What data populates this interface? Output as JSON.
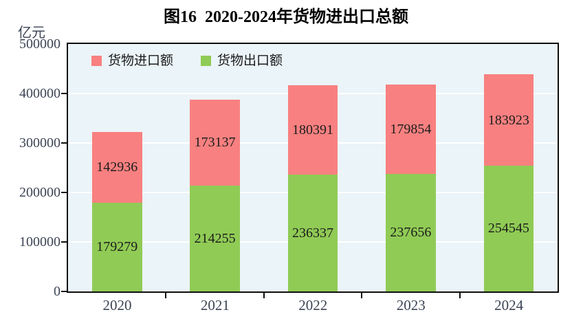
{
  "chart_data": {
    "type": "bar",
    "stacked": true,
    "title": "图16  2020-2024年货物进出口总额",
    "ylabel": "亿元",
    "xlabel": "",
    "categories": [
      "2020",
      "2021",
      "2022",
      "2023",
      "2024"
    ],
    "series": [
      {
        "name": "货物进口额",
        "color": "#f98080",
        "values": [
          142936,
          173137,
          180391,
          179854,
          183923
        ]
      },
      {
        "name": "货物出口额",
        "color": "#90cb55",
        "values": [
          179279,
          214255,
          236337,
          237656,
          254545
        ]
      }
    ],
    "ylim": [
      0,
      500000
    ],
    "yticks": [
      0,
      100000,
      200000,
      300000,
      400000,
      500000
    ],
    "grid": true,
    "legend_position": "top-left",
    "style": {
      "plot_background": "#ebf4f8",
      "grid_color": "#ffffff",
      "axis_border_color": "#0d0d0d",
      "axis_text_color": "#3c4454",
      "value_label_color": "#1c1c1c",
      "title_color": "#000000"
    }
  }
}
